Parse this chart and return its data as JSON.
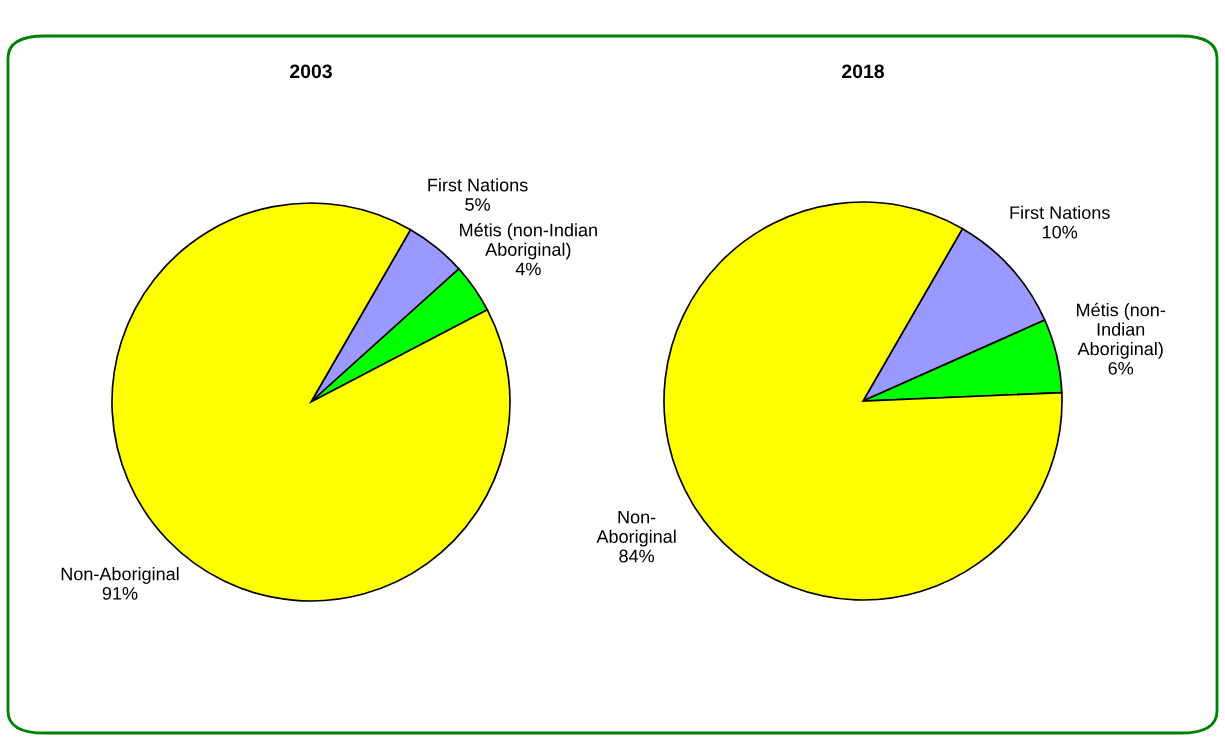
{
  "chart_data": [
    {
      "type": "pie",
      "title": "2003",
      "categories": [
        "First Nations",
        "Métis (non-Indian\nAboriginal)",
        "Non-Aboriginal"
      ],
      "values": [
        5,
        4,
        91
      ],
      "value_labels": [
        "5%",
        "4%",
        "91%"
      ],
      "colors": [
        "#9999ff",
        "#00ff00",
        "#ffff00"
      ]
    },
    {
      "type": "pie",
      "title": "2018",
      "categories": [
        "First Nations",
        "Métis (non-\nIndian\nAboriginal)",
        "Non-\nAboriginal"
      ],
      "values": [
        10,
        6,
        84
      ],
      "value_labels": [
        "10%",
        "6%",
        "84%"
      ],
      "colors": [
        "#9999ff",
        "#00ff00",
        "#ffff00"
      ]
    }
  ]
}
